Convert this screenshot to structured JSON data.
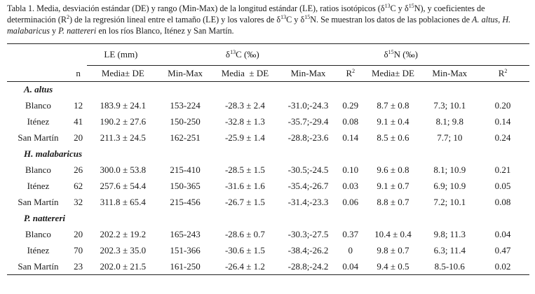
{
  "caption": {
    "p1": "Tabla 1. Media, desviación estándar (DE) y rango (Min-Max) de la longitud estándar (LE), ratios isotópicos (δ",
    "sup1": "13",
    "p2": "C y δ",
    "sup2": "15",
    "p3": "N), y coeficientes de determinación (R",
    "sup3": "2",
    "p4": ") de la regresión lineal entre el tamaño (LE) y los valores de δ",
    "sup4": "13",
    "p5": "C y δ",
    "sup5": "15",
    "p6": "N. Se muestran los datos de las poblaciones de ",
    "sp1": "A. altus",
    "p7": ", ",
    "sp2": "H. malabaricus",
    "p8": " y ",
    "sp3": "P. nattereri",
    "p9": " en los ríos Blanco, Iténez y San Martín."
  },
  "headers": {
    "le": "LE (mm)",
    "c13": {
      "delta": "δ",
      "sup": "13",
      "rest": "C (‰)"
    },
    "n15": {
      "delta": "δ",
      "sup": "15",
      "rest": "N (‰)"
    },
    "n": "n",
    "le_mean": "Media± DE",
    "le_range": "Min-Max",
    "c_mean": "Media  ± DE",
    "c_range": "Min-Max",
    "c_r2": {
      "base": "R",
      "sup": "2"
    },
    "n_mean": "Media± DE",
    "n_range": "Min-Max",
    "n_r2": {
      "base": "R",
      "sup": "2"
    }
  },
  "groups": [
    {
      "species": "A. altus",
      "rows": [
        [
          "Blanco",
          "12",
          "183.9 ± 24.1",
          "153-224",
          "-28.3 ± 2.4",
          "-31.0;-24.3",
          "0.29",
          "8.7 ± 0.8",
          "7.3; 10.1",
          "0.20"
        ],
        [
          "Iténez",
          "41",
          "190.2 ± 27.6",
          "150-250",
          "-32.8 ± 1.3",
          "-35.7;-29.4",
          "0.08",
          "9.1 ± 0.4",
          "8.1; 9.8",
          "0.14"
        ],
        [
          "San Martín",
          "20",
          "211.3 ± 24.5",
          "162-251",
          "-25.9 ± 1.4",
          "-28.8;-23.6",
          "0.14",
          "8.5 ± 0.6",
          "7.7; 10",
          "0.24"
        ]
      ]
    },
    {
      "species": "H. malabaricus",
      "rows": [
        [
          "Blanco",
          "26",
          "300.0 ± 53.8",
          "215-410",
          "-28.5 ± 1.5",
          "-30.5;-24.5",
          "0.10",
          "9.6 ± 0.8",
          "8.1; 10.9",
          "0.21"
        ],
        [
          "Iténez",
          "62",
          "257.6 ± 54.4",
          "150-365",
          "-31.6 ± 1.6",
          "-35.4;-26.7",
          "0.03",
          "9.1 ± 0.7",
          "6.9; 10.9",
          "0.05"
        ],
        [
          "San Martín",
          "32",
          "311.8 ± 65.4",
          "215-456",
          "-26.7 ± 1.5",
          "-31.4;-23.3",
          "0.06",
          "8.8 ± 0.7",
          "7.2; 10.1",
          "0.08"
        ]
      ]
    },
    {
      "species": "P. nattereri",
      "rows": [
        [
          "Blanco",
          "20",
          "202.2 ± 19.2",
          "165-243",
          "-28.6 ± 0.7",
          "-30.3;-27.5",
          "0.37",
          "10.4 ± 0.4",
          "9.8; 11.3",
          "0.04"
        ],
        [
          "Iténez",
          "70",
          "202.3 ± 35.0",
          "151-366",
          "-30.6 ± 1.5",
          "-38.4;-26.2",
          "0",
          "9.8 ± 0.7",
          "6.3; 11.4",
          "0.47"
        ],
        [
          "San Martín",
          "23",
          "202.0 ± 21.5",
          "161-250",
          "-26.4 ± 1.2",
          "-28.8;-24.2",
          "0.04",
          "9.4 ± 0.5",
          "8.5-10.6",
          "0.02"
        ]
      ]
    }
  ]
}
